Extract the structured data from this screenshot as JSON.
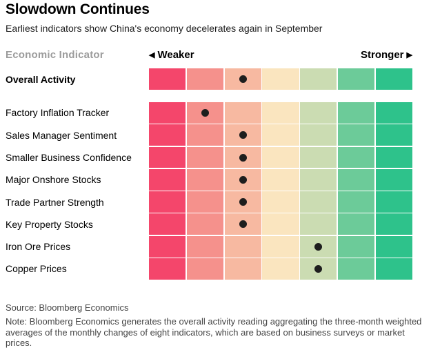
{
  "header": {
    "title": "Slowdown Continues",
    "subtitle": "Earliest indicators show China's economy decelerates again in September"
  },
  "legend": {
    "column_label": "Economic Indicator",
    "weaker_arrow": "◀",
    "weaker_label": "Weaker",
    "stronger_label": "Stronger",
    "stronger_arrow": "▶"
  },
  "chart_data": {
    "type": "heatmap",
    "title": "Slowdown Continues",
    "subtitle": "Earliest indicators show China's economy decelerates again in September",
    "axis": {
      "left_end": "Weaker",
      "right_end": "Stronger"
    },
    "bins": 7,
    "scale_colors": [
      "#f4466b",
      "#f5918c",
      "#f7b9a1",
      "#fae5bf",
      "#cbdcb2",
      "#6ccb99",
      "#2ec28b"
    ],
    "dot_color": "#1e1e1e",
    "overall_row": {
      "label": "Overall Activity",
      "dot_bin": 3
    },
    "rows": [
      {
        "label": "Factory Inflation Tracker",
        "dot_bin": 2
      },
      {
        "label": "Sales Manager Sentiment",
        "dot_bin": 3
      },
      {
        "label": "Smaller Business Confidence",
        "dot_bin": 3
      },
      {
        "label": "Major Onshore Stocks",
        "dot_bin": 3
      },
      {
        "label": "Trade Partner Strength",
        "dot_bin": 3
      },
      {
        "label": "Key Property Stocks",
        "dot_bin": 3
      },
      {
        "label": "Iron Ore Prices",
        "dot_bin": 5
      },
      {
        "label": "Copper Prices",
        "dot_bin": 5
      }
    ]
  },
  "footer": {
    "source": "Source: Bloomberg Economics",
    "note": "Note: Bloomberg Economics generates the overall activity reading aggregating the three-month weighted averages of the monthly changes of eight indicators, which are based on business surveys or market prices."
  }
}
